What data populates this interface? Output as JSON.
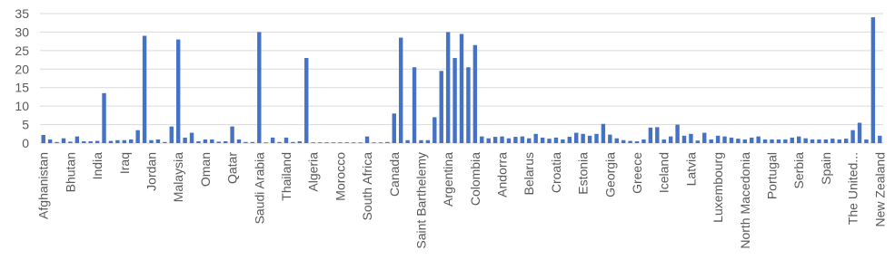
{
  "chart_data": {
    "type": "bar",
    "categories": [
      "Afghanistan",
      null,
      null,
      null,
      "Bhutan",
      null,
      null,
      null,
      "India",
      null,
      null,
      null,
      "Iraq",
      null,
      null,
      null,
      "Jordan",
      null,
      null,
      null,
      "Malaysia",
      null,
      null,
      null,
      "Oman",
      null,
      null,
      null,
      "Qatar",
      null,
      null,
      null,
      "Saudi Arabia",
      null,
      null,
      null,
      "Thailand",
      null,
      null,
      null,
      "Algeria",
      null,
      null,
      null,
      "Morocco",
      null,
      null,
      null,
      "South Africa",
      null,
      null,
      null,
      "Canada",
      null,
      null,
      null,
      "Saint Barthelemy",
      null,
      null,
      null,
      "Argentina",
      null,
      null,
      null,
      "Colombia",
      null,
      null,
      null,
      "Andorra",
      null,
      null,
      null,
      "Belarus",
      null,
      null,
      null,
      "Croatia",
      null,
      null,
      null,
      "Estonia",
      null,
      null,
      null,
      "Georgia",
      null,
      null,
      null,
      "Greece",
      null,
      null,
      null,
      "Iceland",
      null,
      null,
      null,
      "Latvia",
      null,
      null,
      null,
      "Luxembourg",
      null,
      null,
      null,
      "North Macedonia",
      null,
      null,
      null,
      "Portugal",
      null,
      null,
      null,
      "Serbia",
      null,
      null,
      null,
      "Spain",
      null,
      null,
      null,
      "The United...",
      null,
      null,
      null,
      "New Zealand"
    ],
    "values": [
      2.2,
      1,
      0.3,
      1.3,
      0.4,
      1.8,
      0.5,
      0.5,
      0.6,
      13.5,
      0.6,
      0.8,
      0.8,
      1,
      3.5,
      29,
      0.8,
      1,
      0.3,
      4.5,
      28,
      1.5,
      2.8,
      0.5,
      1,
      1,
      0.4,
      0.5,
      4.5,
      1,
      0.3,
      0.3,
      30,
      0.2,
      1.5,
      0.3,
      1.5,
      0.3,
      0.5,
      23,
      0.2,
      0.2,
      0.2,
      0.2,
      0.2,
      0.2,
      0.2,
      0.2,
      1.8,
      0.2,
      0.2,
      0.3,
      8,
      28.5,
      0.8,
      20.5,
      0.8,
      0.8,
      7,
      19.5,
      30,
      23,
      29.5,
      20.5,
      26.5,
      1.8,
      1.3,
      1.7,
      1.8,
      1.3,
      1.7,
      1.8,
      1.3,
      2.5,
      1.5,
      1.2,
      1.5,
      1,
      1.7,
      2.8,
      2.5,
      2,
      2.5,
      5.2,
      2.3,
      1.3,
      0.8,
      0.6,
      0.5,
      1,
      4.2,
      4.3,
      1,
      1.8,
      5,
      2,
      2.5,
      0.7,
      2.8,
      1,
      2,
      1.8,
      1.5,
      1.2,
      1,
      1.5,
      1.8,
      1,
      1,
      1,
      1,
      1.5,
      1.8,
      1.3,
      1,
      1,
      1,
      1.2,
      1,
      1.2,
      3.5,
      5.5,
      1,
      34,
      2
    ],
    "color": "#4472c4",
    "ylim": [
      0,
      35
    ],
    "yticks": [
      0,
      5,
      10,
      15,
      20,
      25,
      30,
      35
    ],
    "grid": true
  }
}
